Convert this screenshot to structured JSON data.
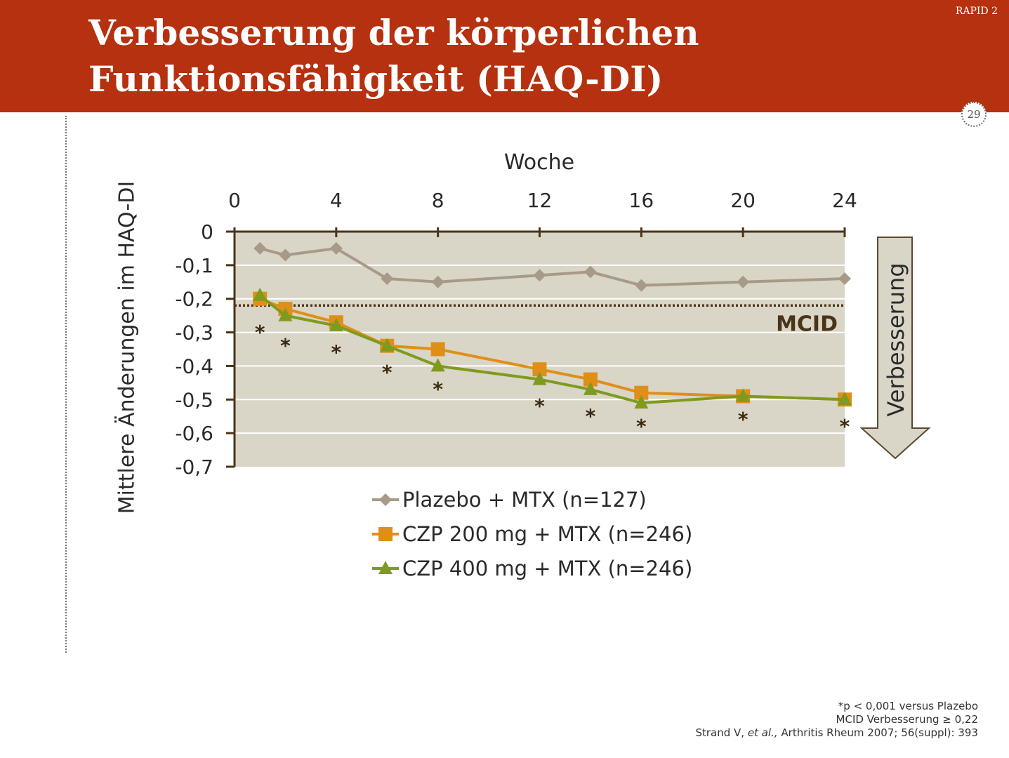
{
  "header": {
    "title_line1": "Verbesserung der körperlichen",
    "title_line2": "Funktionsfähigkeit (HAQ-DI)",
    "tag": "RAPID 2",
    "page_number": "29"
  },
  "footnote": {
    "line1": "*p < 0,001 versus Plazebo",
    "line2": "MCID Verbesserung ≥ 0,22",
    "line3_pre": "Strand V, ",
    "line3_italic": "et al.,",
    "line3_post": " Arthritis Rheum 2007; 56(suppl): 393"
  },
  "colors": {
    "header": "#b5310f",
    "plot_bg": "#d9d5c7",
    "placebo": "#a89a88",
    "czp200": "#df8f18",
    "czp400": "#7f9a1e",
    "axis": "#4a3418",
    "mcid": "#4a3418"
  },
  "chart_data": {
    "type": "line",
    "xlabel": "Woche",
    "ylabel": "Mittlere Änderungen im HAQ-DI",
    "xlim": [
      0,
      24
    ],
    "ylim": [
      -0.7,
      0
    ],
    "x_ticks": [
      0,
      4,
      8,
      12,
      16,
      20,
      24
    ],
    "x_tick_labels": [
      "0",
      "4",
      "8",
      "12",
      "16",
      "20",
      "24"
    ],
    "y_ticks": [
      0,
      -0.1,
      -0.2,
      -0.3,
      -0.4,
      -0.5,
      -0.6,
      -0.7
    ],
    "y_tick_labels": [
      "0",
      "-0,1",
      "-0,2",
      "-0,3",
      "-0,4",
      "-0,5",
      "-0,6",
      "-0,7"
    ],
    "x_axis_position": "top",
    "grid": true,
    "legend_position": "bottom",
    "series": [
      {
        "name": "Plazebo + MTX (n=127)",
        "marker": "diamond",
        "x": [
          1,
          2,
          4,
          6,
          8,
          12,
          14,
          16,
          20,
          24
        ],
        "y": [
          -0.05,
          -0.07,
          -0.05,
          -0.14,
          -0.15,
          -0.13,
          -0.12,
          -0.16,
          -0.15,
          -0.14
        ]
      },
      {
        "name": "CZP 200 mg + MTX (n=246)",
        "marker": "square",
        "x": [
          1,
          2,
          4,
          6,
          8,
          12,
          14,
          16,
          20,
          24
        ],
        "y": [
          -0.2,
          -0.23,
          -0.27,
          -0.34,
          -0.35,
          -0.41,
          -0.44,
          -0.48,
          -0.49,
          -0.5
        ]
      },
      {
        "name": "CZP 400 mg + MTX (n=246)",
        "marker": "triangle",
        "x": [
          1,
          2,
          4,
          6,
          8,
          12,
          14,
          16,
          20,
          24
        ],
        "y": [
          -0.19,
          -0.25,
          -0.28,
          -0.34,
          -0.4,
          -0.44,
          -0.47,
          -0.51,
          -0.49,
          -0.5
        ]
      }
    ],
    "reference_line": {
      "label": "MCID",
      "y": -0.22,
      "style": "dotted"
    },
    "significance": {
      "symbol": "*",
      "x": [
        1,
        2,
        4,
        6,
        8,
        12,
        14,
        16,
        20,
        24
      ],
      "y": [
        -0.29,
        -0.33,
        -0.35,
        -0.41,
        -0.46,
        -0.51,
        -0.54,
        -0.57,
        -0.55,
        -0.57
      ]
    },
    "annotation_arrow": {
      "label": "Verbesserung",
      "direction": "down"
    }
  }
}
